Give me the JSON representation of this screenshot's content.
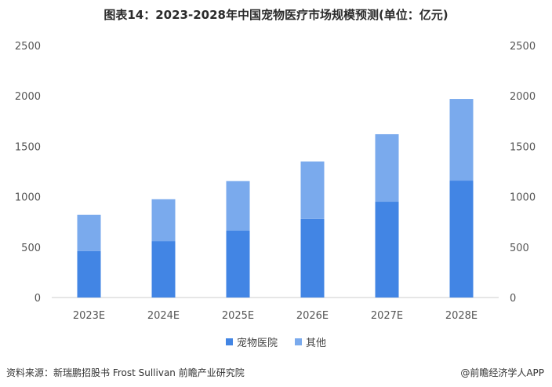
{
  "title": "图表14：2023-2028年中国宠物医疗市场规模预测(单位：亿元)",
  "chart_data": {
    "type": "bar",
    "stacked": true,
    "categories": [
      "2023E",
      "2024E",
      "2025E",
      "2026E",
      "2027E",
      "2028E"
    ],
    "series": [
      {
        "name": "宠物医院",
        "values": [
          460,
          560,
          665,
          780,
          950,
          1160
        ],
        "color": "#4285e4"
      },
      {
        "name": "其他",
        "values": [
          360,
          415,
          490,
          570,
          670,
          810
        ],
        "color": "#7aaaed"
      }
    ],
    "ylim": [
      0,
      2500
    ],
    "yticks": [
      0,
      500,
      1000,
      1500,
      2000,
      2500
    ],
    "secondary_axis": true,
    "legend": "bottom-center"
  },
  "footer": {
    "source": "资料来源：新瑞鹏招股书 Frost Sullivan 前瞻产业研究院",
    "brand": "@前瞻经济学人APP"
  }
}
